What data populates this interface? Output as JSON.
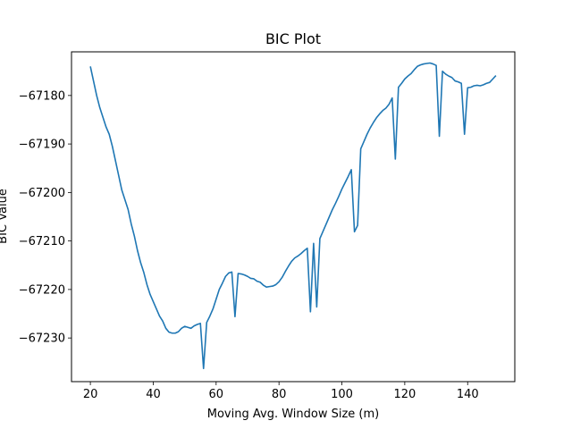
{
  "chart_data": {
    "type": "line",
    "title": "BIC Plot",
    "xlabel": "Moving Avg. Window Size (m)",
    "ylabel": "BIC Value",
    "xlim": [
      14,
      155
    ],
    "ylim": [
      -67239,
      -67171
    ],
    "xticks": [
      20,
      40,
      60,
      80,
      100,
      120,
      140
    ],
    "yticks": [
      -67230,
      -67220,
      -67210,
      -67200,
      -67190,
      -67180
    ],
    "line_color": "#1f77b4",
    "grid": false,
    "series": [
      {
        "x": [
          20,
          21,
          22,
          23,
          24,
          25,
          26,
          27,
          28,
          29,
          30,
          31,
          32,
          33,
          34,
          35,
          36,
          37,
          38,
          39,
          40,
          41,
          42,
          43,
          44,
          45,
          46,
          47,
          48,
          49,
          50,
          51,
          52,
          53,
          54,
          55,
          56,
          57,
          58,
          59,
          60,
          61,
          62,
          63,
          64,
          65,
          66,
          67,
          68,
          69,
          70,
          71,
          72,
          73,
          74,
          75,
          76,
          77,
          78,
          79,
          80,
          81,
          82,
          83,
          84,
          85,
          86,
          87,
          88,
          89,
          90,
          91,
          92,
          93,
          94,
          95,
          96,
          97,
          98,
          99,
          100,
          101,
          102,
          103,
          104,
          105,
          106,
          107,
          108,
          109,
          110,
          111,
          112,
          113,
          114,
          115,
          116,
          117,
          118,
          119,
          120,
          121,
          122,
          123,
          124,
          125,
          126,
          127,
          128,
          129,
          130,
          131,
          132,
          133,
          134,
          135,
          136,
          137,
          138,
          139,
          140,
          141,
          142,
          143,
          144,
          145,
          146,
          147,
          148,
          149
        ],
        "y": [
          -67174,
          -67177,
          -67180,
          -67182.5,
          -67184.5,
          -67186.5,
          -67188,
          -67190.5,
          -67193.5,
          -67196.5,
          -67199.5,
          -67201.5,
          -67203.5,
          -67206.5,
          -67209,
          -67212,
          -67214.5,
          -67216.5,
          -67219,
          -67221,
          -67222.5,
          -67224,
          -67225.5,
          -67226.5,
          -67228,
          -67228.8,
          -67229,
          -67229,
          -67228.7,
          -67228,
          -67227.6,
          -67227.8,
          -67228,
          -67227.5,
          -67227.2,
          -67227,
          -67236.3,
          -67226.8,
          -67225.5,
          -67224,
          -67222,
          -67220,
          -67218.7,
          -67217.3,
          -67216.6,
          -67216.4,
          -67225.6,
          -67216.7,
          -67216.8,
          -67217,
          -67217.3,
          -67217.7,
          -67217.8,
          -67218.3,
          -67218.5,
          -67219.1,
          -67219.5,
          -67219.4,
          -67219.3,
          -67219,
          -67218.4,
          -67217.5,
          -67216.3,
          -67215.2,
          -67214.2,
          -67213.5,
          -67213.1,
          -67212.6,
          -67212,
          -67211.5,
          -67224.6,
          -67210.5,
          -67223.6,
          -67209.5,
          -67208,
          -67206.5,
          -67205,
          -67203.5,
          -67202.2,
          -67200.8,
          -67199.3,
          -67198,
          -67196.7,
          -67195.3,
          -67208.1,
          -67206.8,
          -67191,
          -67189.5,
          -67188,
          -67186.7,
          -67185.6,
          -67184.6,
          -67183.8,
          -67183.1,
          -67182.6,
          -67181.8,
          -67180.5,
          -67193.1,
          -67178.3,
          -67177.5,
          -67176.6,
          -67176,
          -67175.5,
          -67174.7,
          -67174,
          -67173.7,
          -67173.5,
          -67173.4,
          -67173.3,
          -67173.5,
          -67173.8,
          -67188.4,
          -67175,
          -67175.6,
          -67176,
          -67176.3,
          -67177,
          -67177.2,
          -67177.5,
          -67188,
          -67178.4,
          -67178.3,
          -67178,
          -67177.9,
          -67178,
          -67177.8,
          -67177.5,
          -67177.3,
          -67176.6,
          -67175.9
        ]
      }
    ]
  }
}
